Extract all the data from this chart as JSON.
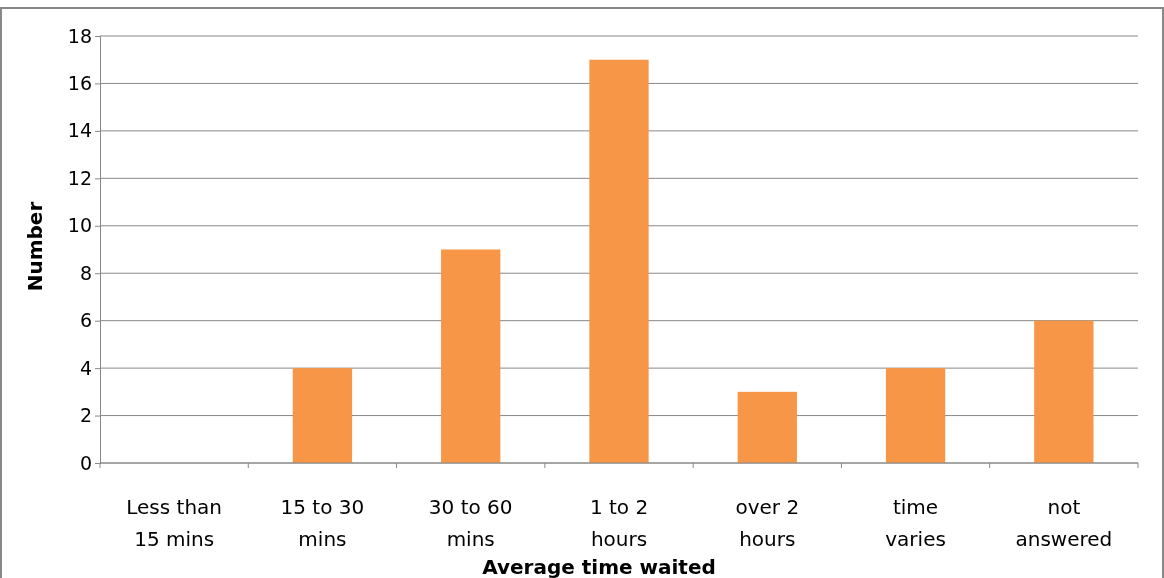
{
  "chart_data": {
    "type": "bar",
    "categories": [
      "Less than 15 mins",
      "15 to 30 mins",
      "30 to 60 mins",
      "1 to 2 hours",
      "over 2 hours",
      "time varies",
      "not answered"
    ],
    "values": [
      0,
      4,
      9,
      17,
      3,
      4,
      6
    ],
    "color": "#f79646",
    "ylim": [
      0,
      18
    ],
    "yticks": [
      0,
      2,
      4,
      6,
      8,
      10,
      12,
      14,
      16,
      18
    ],
    "grid": "y",
    "xlabel": "Average time waited",
    "ylabel": "Number"
  }
}
